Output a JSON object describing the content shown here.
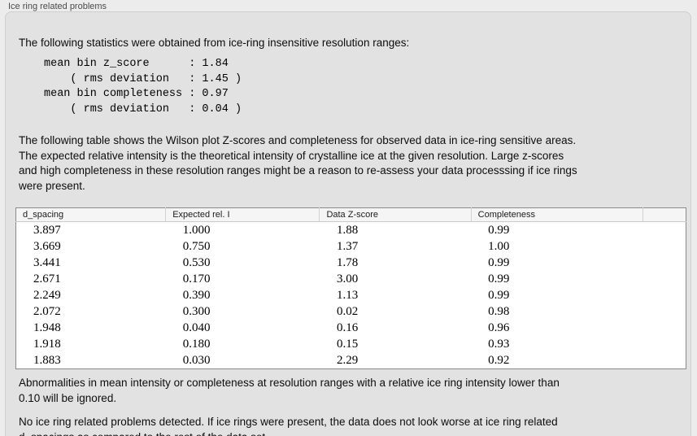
{
  "colors": {
    "window_bg": "#ececec",
    "panel_bg": "#e2e2e2",
    "panel_border": "#cfcfcf",
    "table_border": "#8a8a8a",
    "table_header_bg": "#f5f5f5",
    "text": "#0d0d0d"
  },
  "panel": {
    "title": "Ice ring related problems",
    "intro": "The following statistics were obtained from ice-ring insensitive resolution ranges:",
    "stats_lines": [
      "mean bin z_score      : 1.84",
      "    ( rms deviation   : 1.45 )",
      "mean bin completeness : 0.97",
      "    ( rms deviation   : 0.04 )"
    ],
    "table_description": "The following table shows the Wilson plot Z-scores and completeness for observed data in ice-ring sensitive areas.\nThe expected relative intensity is the theoretical intensity of crystalline ice at the given resolution. Large z-scores\nand high completeness in these resolution ranges might be a reason to re-assess your data processsing if ice rings\nwere present.",
    "ignore_note": "Abnormalities in mean intensity or completeness at resolution ranges with a relative ice ring intensity lower than\n0.10 will be ignored.",
    "conclusion": "No ice ring related problems detected. If ice rings were present, the data does not look worse at ice ring related\nd_spacings as compared to the rest of the data set."
  },
  "table": {
    "columns": [
      "d_spacing",
      "Expected rel. I",
      "Data Z-score",
      "Completeness"
    ],
    "rows": [
      [
        "3.897",
        "1.000",
        "1.88",
        "0.99"
      ],
      [
        "3.669",
        "0.750",
        "1.37",
        "1.00"
      ],
      [
        "3.441",
        "0.530",
        "1.78",
        "0.99"
      ],
      [
        "2.671",
        "0.170",
        "3.00",
        "0.99"
      ],
      [
        "2.249",
        "0.390",
        "1.13",
        "0.99"
      ],
      [
        "2.072",
        "0.300",
        "0.02",
        "0.98"
      ],
      [
        "1.948",
        "0.040",
        "0.16",
        "0.96"
      ],
      [
        "1.918",
        "0.180",
        "0.15",
        "0.93"
      ],
      [
        "1.883",
        "0.030",
        "2.29",
        "0.92"
      ]
    ]
  }
}
